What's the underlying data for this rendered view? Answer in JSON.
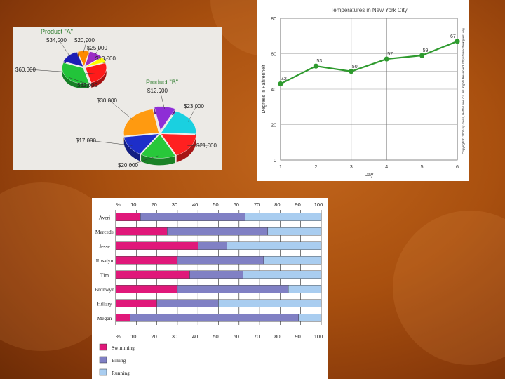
{
  "pie_chart": {
    "chart_data": [
      {
        "type": "pie",
        "title": "Product \"A\"",
        "slices": [
          {
            "label": "$34,000",
            "value": 34000,
            "color": "#1d1db5"
          },
          {
            "label": "$20,000",
            "value": 20000,
            "color": "#ff8a00"
          },
          {
            "label": "$25,000",
            "value": 25000,
            "color": "#9b2cc4"
          },
          {
            "label": "$13,000",
            "value": 13000,
            "color": "#ffff00"
          },
          {
            "label": "$60,000",
            "value": 60000,
            "color": "#ff1a1a"
          },
          {
            "label": "$82,000",
            "value": 82000,
            "color": "#22c43a"
          }
        ]
      },
      {
        "type": "pie",
        "title": "Product \"B\"",
        "slices": [
          {
            "label": "$12,000",
            "value": 12000,
            "color": "#8e2ed6"
          },
          {
            "label": "$23,000",
            "value": 23000,
            "color": "#1ad0e0"
          },
          {
            "label": "$21,000",
            "value": 21000,
            "color": "#ff2020"
          },
          {
            "label": "$20,000",
            "value": 20000,
            "color": "#28c83a"
          },
          {
            "label": "$17,000",
            "value": 17000,
            "color": "#1d2ec9"
          },
          {
            "label": "$30,000",
            "value": 30000,
            "color": "#ff9a10"
          }
        ]
      }
    ]
  },
  "line_chart": {
    "copyright": "Copyright © 2000 by Gena, Hoffe Lane Co. All Rights Reserved. http://www.thinkquest.org",
    "chart_data": {
      "type": "line",
      "title": "Temperatures in New York City",
      "xlabel": "Day",
      "ylabel": "Degrees in Fahrenheit",
      "x": [
        1,
        2,
        3,
        4,
        5,
        6
      ],
      "x_ticks": [
        "1",
        "2",
        "3",
        "4",
        "5",
        "6"
      ],
      "y": [
        43,
        53,
        50,
        57,
        59,
        67
      ],
      "data_labels": [
        "43",
        "53",
        "50",
        "57",
        "59",
        "67"
      ],
      "y_ticks": [
        "0",
        "20",
        "40",
        "60",
        "80"
      ],
      "ylim": [
        0,
        80
      ],
      "grid": true,
      "color": "#2e9a2e"
    }
  },
  "bar_chart": {
    "chart_data": {
      "type": "bar",
      "orientation": "horizontal-stacked-100",
      "categories": [
        "Averi",
        "Mercede",
        "Jesse",
        "Rosalyn",
        "Tim",
        "Bronwyn",
        "Hillary",
        "Megan"
      ],
      "series": [
        {
          "name": "Swimming",
          "color": "#e0187a",
          "values": [
            12,
            25,
            40,
            30,
            36,
            30,
            20,
            7
          ]
        },
        {
          "name": "Biking",
          "color": "#8080c4",
          "values": [
            51,
            49,
            14,
            42,
            26,
            54,
            30,
            82
          ]
        },
        {
          "name": "Running",
          "color": "#a9cdf0",
          "values": [
            37,
            26,
            46,
            28,
            38,
            16,
            50,
            11
          ]
        }
      ],
      "axis_unit": "%",
      "x_ticks": [
        "10",
        "20",
        "30",
        "40",
        "50",
        "60",
        "70",
        "80",
        "90",
        "100"
      ],
      "xlim": [
        0,
        100
      ],
      "legend_position": "bottom-left"
    }
  }
}
